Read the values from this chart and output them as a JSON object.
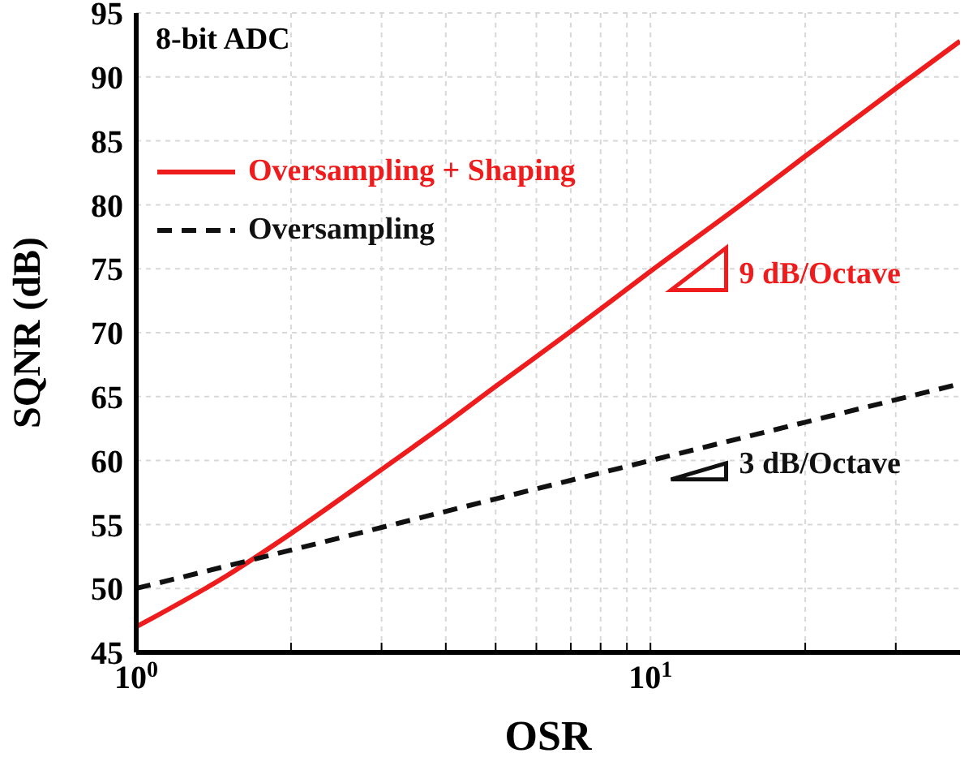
{
  "chart_data": {
    "type": "line",
    "xlabel": "OSR",
    "ylabel": "SQNR (dB)",
    "log": "x",
    "xlim": [
      1,
      40
    ],
    "ylim": [
      45,
      95
    ],
    "xticks": [
      {
        "value": 1,
        "label": "10$^{0}$"
      },
      {
        "value": 2,
        "label": null
      },
      {
        "value": 3,
        "label": null
      },
      {
        "value": 4,
        "label": null
      },
      {
        "value": 5,
        "label": null
      },
      {
        "value": 6,
        "label": null
      },
      {
        "value": 7,
        "label": null
      },
      {
        "value": 8,
        "label": null
      },
      {
        "value": 9,
        "label": null
      },
      {
        "value": 10,
        "label": "10$^{1}$"
      },
      {
        "value": 20,
        "label": null
      },
      {
        "value": 30,
        "label": null
      }
    ],
    "yticks": [
      45,
      50,
      55,
      60,
      65,
      70,
      75,
      80,
      85,
      90,
      95
    ],
    "grid": true,
    "legend": "top left",
    "marker": "none",
    "series": [
      {
        "name": "Oversampling + Shaping",
        "color": "#ee1c1c",
        "line_style": "solid",
        "x": [
          1,
          1.5,
          2,
          3,
          4,
          5,
          7,
          10,
          15,
          20,
          30,
          40
        ],
        "values": [
          47.0,
          51.0,
          54.3,
          59.3,
          62.9,
          65.8,
          70.1,
          74.8,
          80.0,
          83.8,
          89.1,
          92.8
        ]
      },
      {
        "name": "Oversampling",
        "color": "#111111",
        "line_style": "dashed",
        "x": [
          1,
          2,
          5,
          10,
          20,
          40
        ],
        "values": [
          50.0,
          53.0,
          57.0,
          60.0,
          63.0,
          66.0
        ]
      }
    ],
    "annotations": [
      "8-bit ADC",
      "9 dB/Octave",
      "3 dB/Octave"
    ]
  }
}
